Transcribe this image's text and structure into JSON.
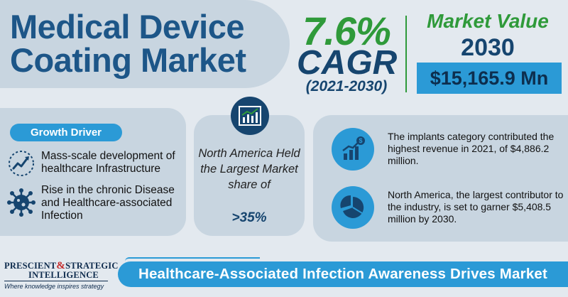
{
  "title": {
    "line1": "Medical Device",
    "line2": "Coating Market"
  },
  "cagr": {
    "value": "7.6%",
    "label": "CAGR",
    "period": "(2021-2030)"
  },
  "market_value": {
    "label": "Market Value",
    "year": "2030",
    "amount": "$15,165.9 Mn"
  },
  "growth_driver": {
    "badge": "Growth Driver",
    "items": [
      {
        "icon": "trend-arrow-icon",
        "text": "Mass-scale development of healthcare Infrastructure"
      },
      {
        "icon": "virus-icon",
        "text": "Rise in the chronic Disease and Healthcare-associated Infection"
      }
    ]
  },
  "region": {
    "icon": "bar-chart-icon",
    "text": "North America Held the Largest Market share of",
    "share": ">35%"
  },
  "insights": [
    {
      "icon": "growth-dollar-icon",
      "text": "The implants category contributed the highest revenue in 2021, of $4,886.2 million."
    },
    {
      "icon": "pie-chart-icon",
      "text": "North America, the largest contributor to the industry, is set to garner $5,408.5 million by 2030."
    }
  ],
  "logo": {
    "line1": "PRESCIENT",
    "amp": "&",
    "line1b": "STRATEGIC",
    "line2": "INTELLIGENCE",
    "tagline": "Where knowledge inspires strategy"
  },
  "banner": "Healthcare-Associated Infection Awareness Drives Market",
  "colors": {
    "navy": "#16456f",
    "green": "#2f9a3a",
    "blue": "#2b9ad6",
    "panel": "#c8d5e0",
    "background": "#e3e9ef"
  }
}
